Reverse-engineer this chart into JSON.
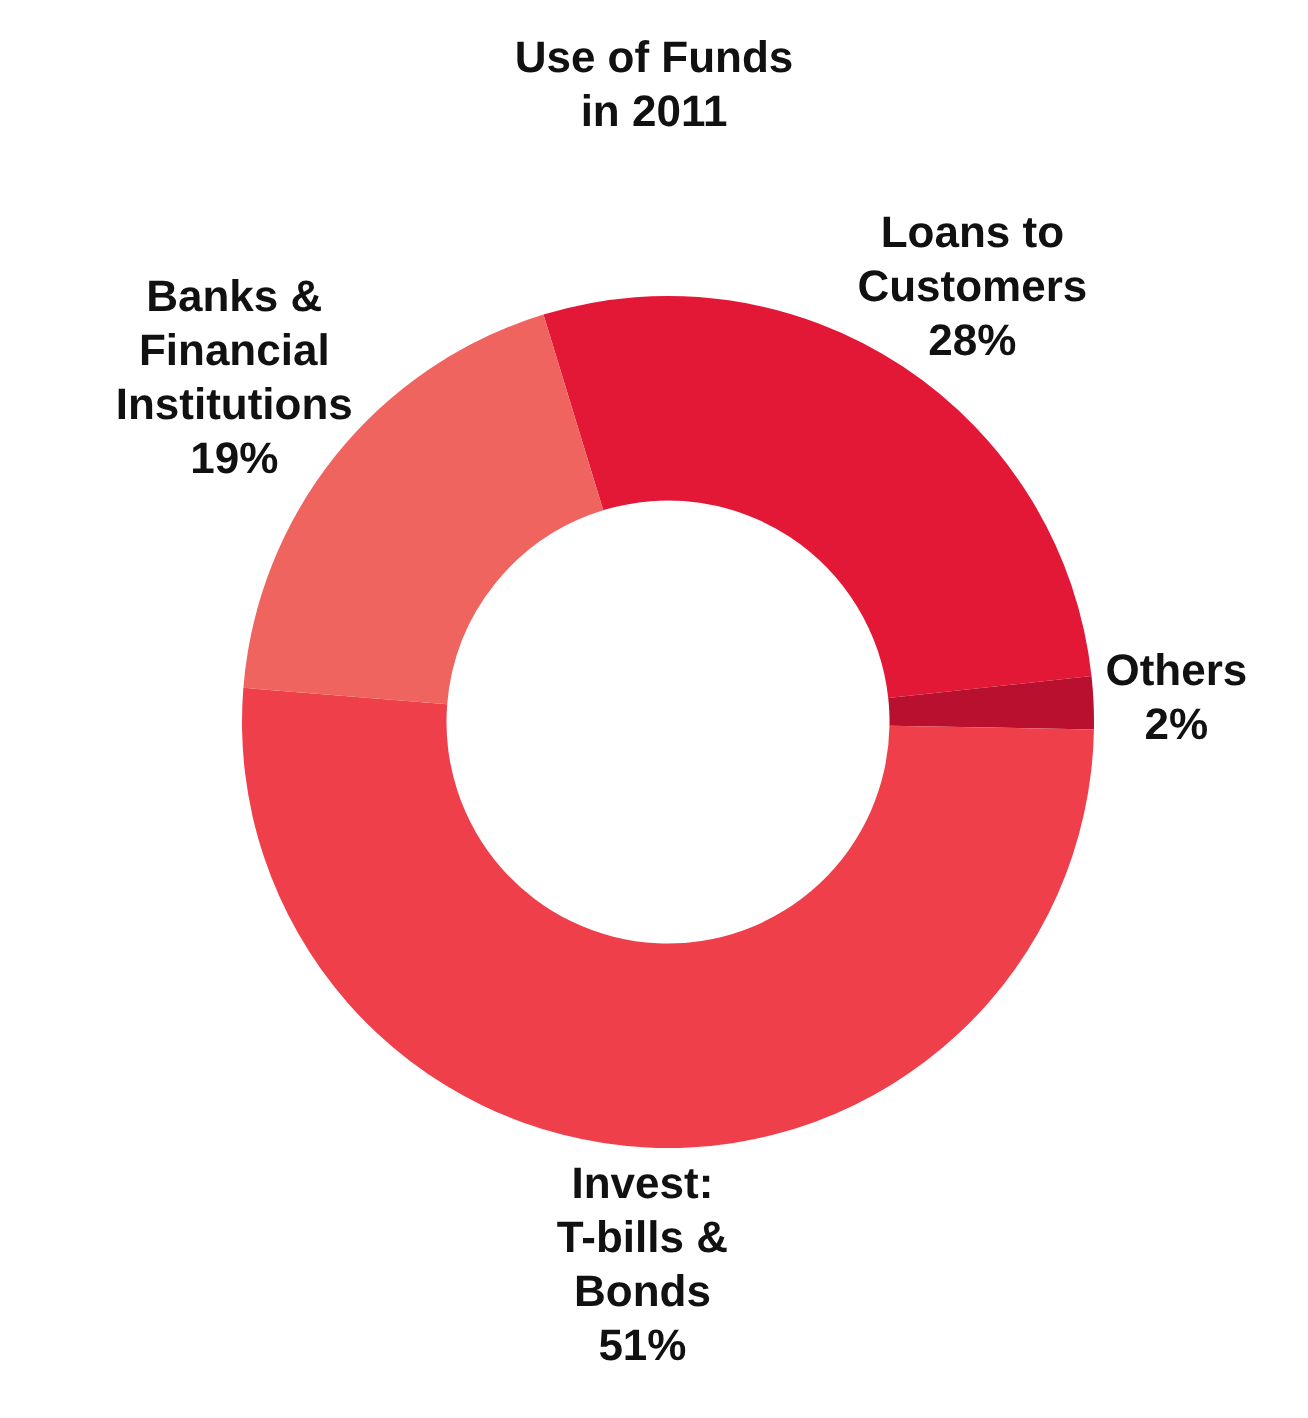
{
  "chart_data": {
    "type": "donut",
    "title": "Use of Funds in 2011",
    "categories": [
      "Loans to Customers",
      "Others",
      "Invest: T-bills & Bonds",
      "Banks & Financial Institutions"
    ],
    "values": [
      28,
      2,
      51,
      19
    ],
    "value_labels": [
      "28%",
      "2%",
      "51%",
      "19%"
    ],
    "colors": [
      "#e31837",
      "#b8102e",
      "#ee3f4b",
      "#f0645f"
    ],
    "legend": false
  }
}
